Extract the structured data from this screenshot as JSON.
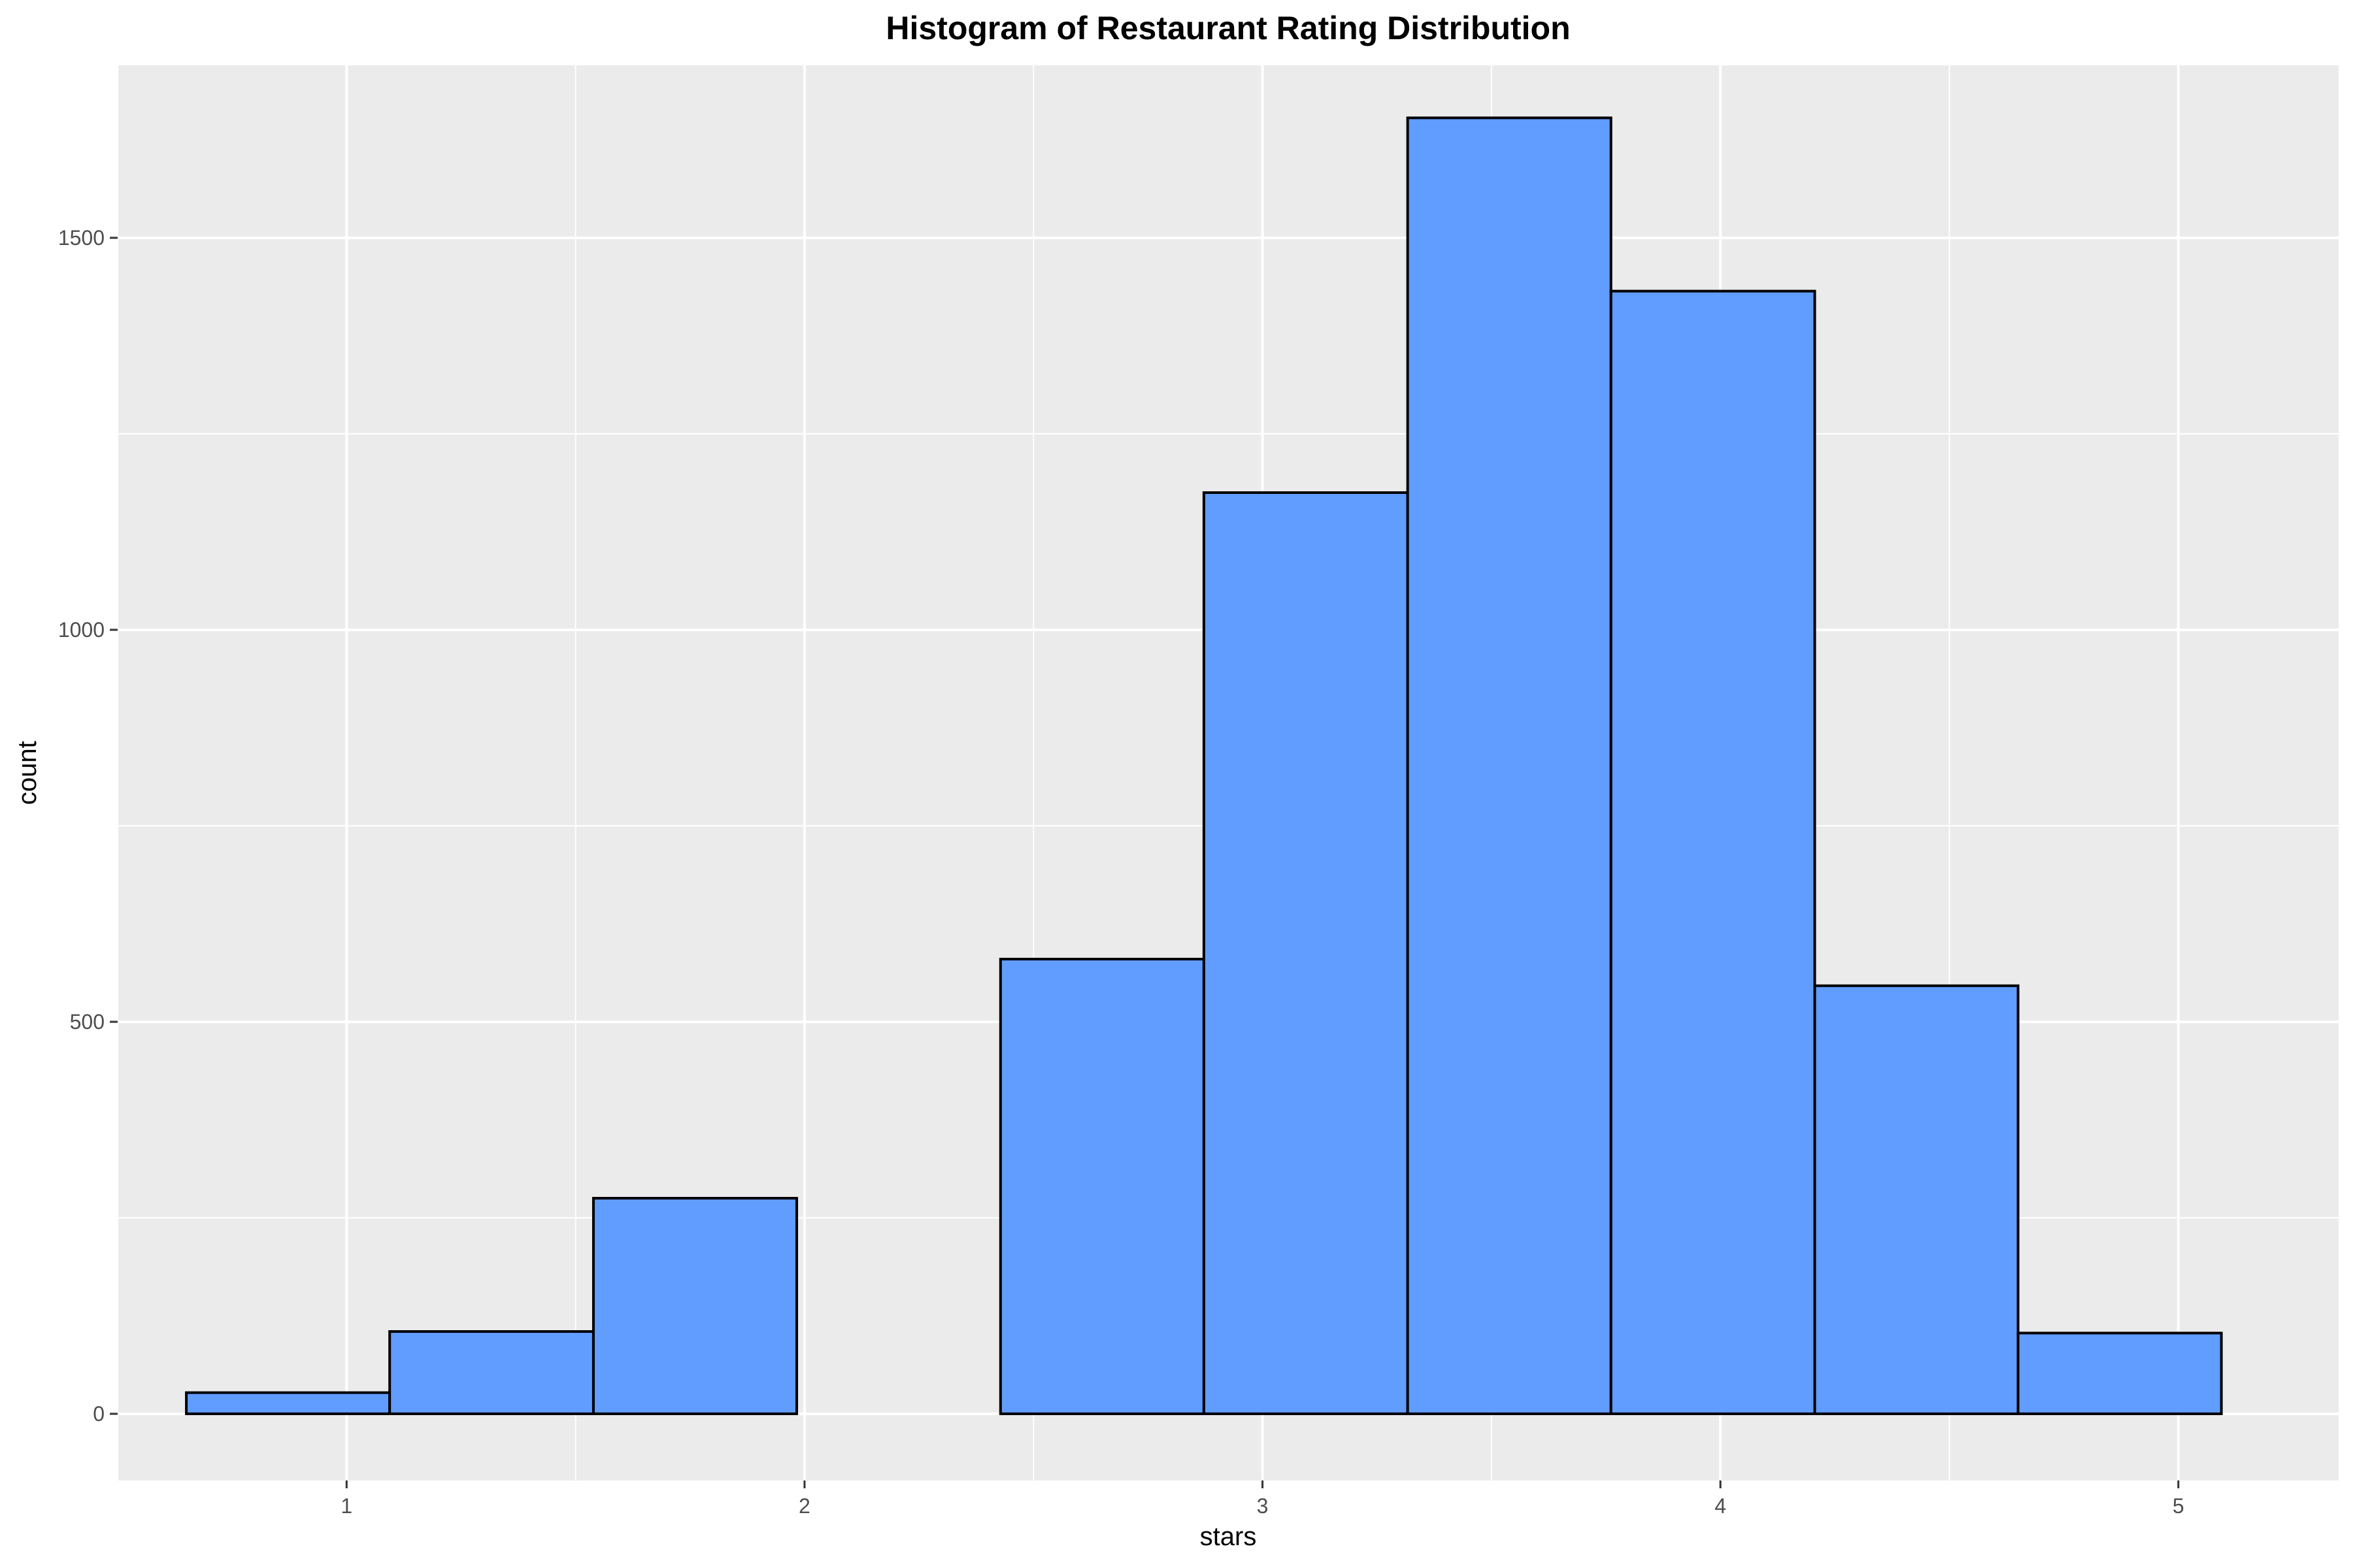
{
  "chart_data": {
    "type": "bar",
    "title": "Histogram of Restaurant Rating Distribution",
    "xlabel": "stars",
    "ylabel": "count",
    "xlim": [
      0.5,
      5.35
    ],
    "ylim": [
      -85,
      1720
    ],
    "x_ticks": [
      1,
      2,
      3,
      4,
      5
    ],
    "y_ticks": [
      0,
      500,
      1000,
      1500
    ],
    "bins": [
      {
        "x0": 0.65,
        "x1": 1.094,
        "count": 27
      },
      {
        "x0": 1.094,
        "x1": 1.539,
        "count": 105
      },
      {
        "x0": 1.539,
        "x1": 1.983,
        "count": 275
      },
      {
        "x0": 1.983,
        "x1": 2.428,
        "count": 0
      },
      {
        "x0": 2.428,
        "x1": 2.872,
        "count": 580
      },
      {
        "x0": 2.872,
        "x1": 3.317,
        "count": 1175
      },
      {
        "x0": 3.317,
        "x1": 3.761,
        "count": 1653
      },
      {
        "x0": 3.761,
        "x1": 4.206,
        "count": 1432
      },
      {
        "x0": 4.206,
        "x1": 4.65,
        "count": 546
      },
      {
        "x0": 4.65,
        "x1": 5.094,
        "count": 103
      }
    ],
    "grid": true,
    "colors": {
      "panel_background": "#ebebeb",
      "grid_line": "#ffffff",
      "bar_fill": "#619cff",
      "bar_outline": "#000000"
    }
  }
}
